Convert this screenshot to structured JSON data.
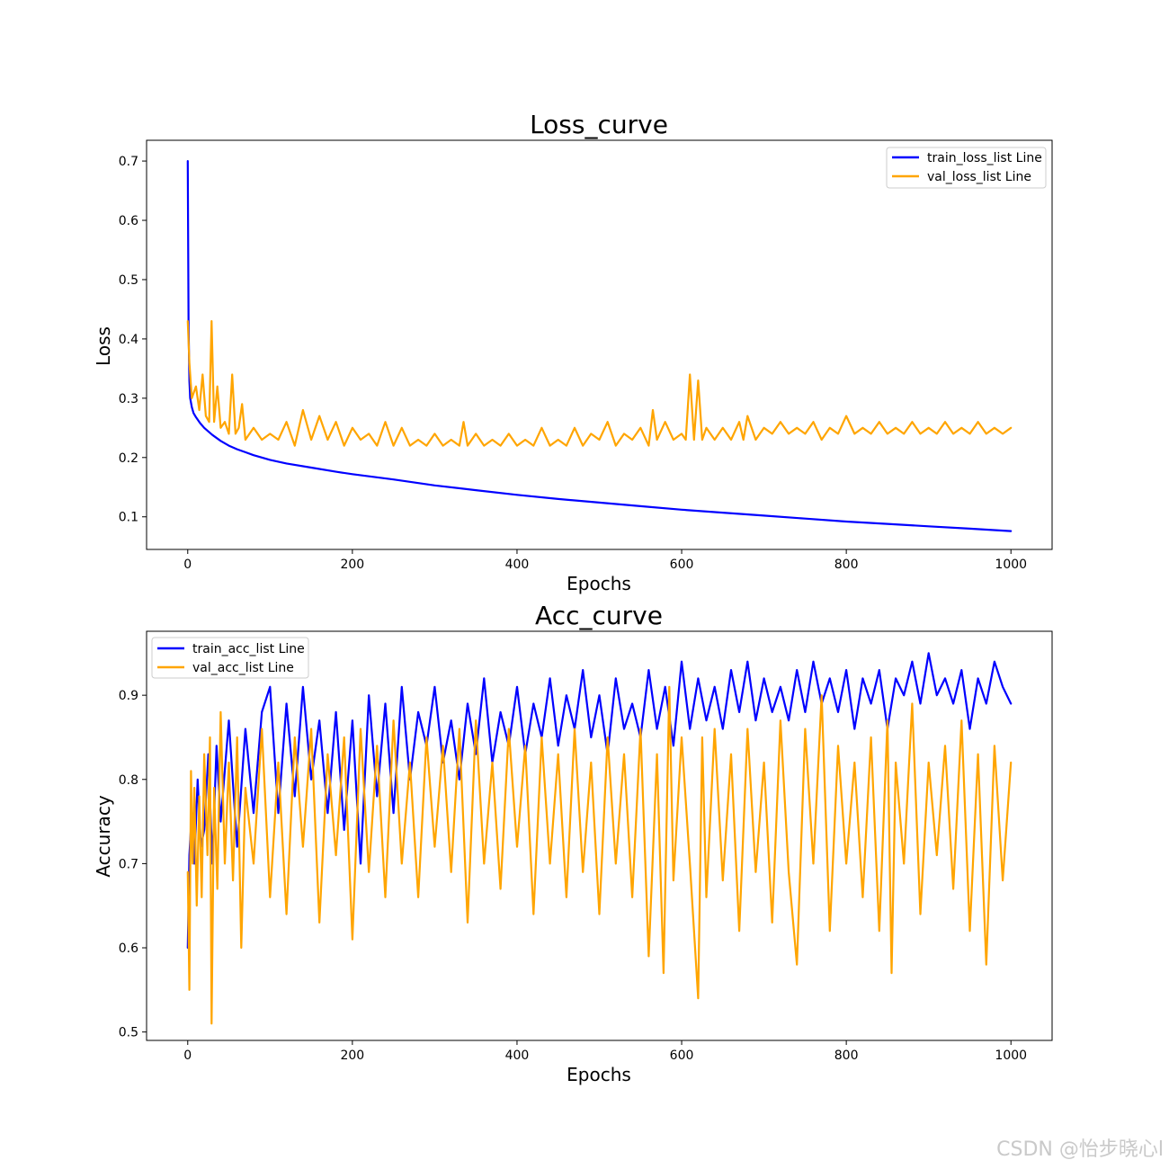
{
  "watermark": "CSDN @怡步晓心l",
  "chart_data": [
    {
      "type": "line",
      "title": "Loss_curve",
      "xlabel": "Epochs",
      "ylabel": "Loss",
      "xlim": [
        -50,
        1050
      ],
      "ylim": [
        0.045,
        0.735
      ],
      "xticks": [
        0,
        200,
        400,
        600,
        800,
        1000
      ],
      "yticks": [
        0.1,
        0.2,
        0.3,
        0.4,
        0.5,
        0.6,
        0.7
      ],
      "legend_position": "upper right",
      "grid": false,
      "series": [
        {
          "name": "train_loss_list Line",
          "color": "#0000ff",
          "x": [
            0,
            1,
            2,
            3,
            5,
            7,
            10,
            15,
            20,
            25,
            30,
            40,
            50,
            60,
            70,
            80,
            100,
            120,
            150,
            180,
            200,
            250,
            300,
            350,
            400,
            450,
            500,
            550,
            600,
            650,
            700,
            750,
            800,
            850,
            900,
            950,
            1000
          ],
          "y": [
            0.7,
            0.42,
            0.33,
            0.3,
            0.285,
            0.275,
            0.268,
            0.258,
            0.25,
            0.244,
            0.238,
            0.228,
            0.22,
            0.214,
            0.209,
            0.204,
            0.196,
            0.19,
            0.183,
            0.176,
            0.172,
            0.163,
            0.153,
            0.145,
            0.137,
            0.13,
            0.124,
            0.118,
            0.112,
            0.107,
            0.102,
            0.097,
            0.092,
            0.088,
            0.084,
            0.08,
            0.076
          ]
        },
        {
          "name": "val_loss_list Line",
          "color": "#ffa500",
          "x": [
            0,
            2,
            5,
            10,
            14,
            18,
            22,
            26,
            29,
            32,
            36,
            40,
            45,
            50,
            54,
            58,
            62,
            66,
            70,
            80,
            90,
            100,
            110,
            120,
            130,
            140,
            150,
            160,
            170,
            180,
            190,
            200,
            210,
            220,
            230,
            240,
            250,
            260,
            270,
            280,
            290,
            300,
            310,
            320,
            330,
            335,
            340,
            350,
            360,
            370,
            380,
            390,
            400,
            410,
            420,
            430,
            440,
            450,
            460,
            470,
            480,
            490,
            500,
            510,
            520,
            530,
            540,
            550,
            560,
            565,
            570,
            580,
            590,
            600,
            605,
            610,
            615,
            620,
            625,
            630,
            640,
            650,
            660,
            670,
            675,
            680,
            690,
            700,
            710,
            720,
            730,
            740,
            750,
            760,
            770,
            780,
            790,
            800,
            810,
            820,
            830,
            840,
            850,
            860,
            870,
            880,
            890,
            900,
            910,
            920,
            930,
            940,
            950,
            960,
            970,
            980,
            990,
            1000
          ],
          "y": [
            0.43,
            0.36,
            0.3,
            0.32,
            0.28,
            0.34,
            0.27,
            0.26,
            0.43,
            0.26,
            0.32,
            0.25,
            0.26,
            0.24,
            0.34,
            0.24,
            0.25,
            0.29,
            0.23,
            0.25,
            0.23,
            0.24,
            0.23,
            0.26,
            0.22,
            0.28,
            0.23,
            0.27,
            0.23,
            0.26,
            0.22,
            0.25,
            0.23,
            0.24,
            0.22,
            0.26,
            0.22,
            0.25,
            0.22,
            0.23,
            0.22,
            0.24,
            0.22,
            0.23,
            0.22,
            0.26,
            0.22,
            0.24,
            0.22,
            0.23,
            0.22,
            0.24,
            0.22,
            0.23,
            0.22,
            0.25,
            0.22,
            0.23,
            0.22,
            0.25,
            0.22,
            0.24,
            0.23,
            0.26,
            0.22,
            0.24,
            0.23,
            0.25,
            0.22,
            0.28,
            0.23,
            0.26,
            0.23,
            0.24,
            0.23,
            0.34,
            0.23,
            0.33,
            0.23,
            0.25,
            0.23,
            0.25,
            0.23,
            0.26,
            0.23,
            0.27,
            0.23,
            0.25,
            0.24,
            0.26,
            0.24,
            0.25,
            0.24,
            0.26,
            0.23,
            0.25,
            0.24,
            0.27,
            0.24,
            0.25,
            0.24,
            0.26,
            0.24,
            0.25,
            0.24,
            0.26,
            0.24,
            0.25,
            0.24,
            0.26,
            0.24,
            0.25,
            0.24,
            0.26,
            0.24,
            0.25,
            0.24,
            0.25
          ]
        }
      ]
    },
    {
      "type": "line",
      "title": "Acc_curve",
      "xlabel": "Epochs",
      "ylabel": "Accuracy",
      "xlim": [
        -50,
        1050
      ],
      "ylim": [
        0.49,
        0.976
      ],
      "xticks": [
        0,
        200,
        400,
        600,
        800,
        1000
      ],
      "yticks": [
        0.5,
        0.6,
        0.7,
        0.8,
        0.9
      ],
      "legend_position": "upper left",
      "grid": false,
      "series": [
        {
          "name": "train_acc_list Line",
          "color": "#0000ff",
          "x": [
            0,
            2,
            5,
            8,
            12,
            16,
            20,
            25,
            30,
            35,
            40,
            50,
            60,
            70,
            80,
            90,
            100,
            110,
            120,
            130,
            140,
            150,
            160,
            170,
            180,
            190,
            200,
            210,
            220,
            230,
            240,
            250,
            260,
            270,
            280,
            290,
            300,
            310,
            320,
            330,
            340,
            350,
            360,
            370,
            380,
            390,
            400,
            410,
            420,
            430,
            440,
            450,
            460,
            470,
            480,
            490,
            500,
            510,
            520,
            530,
            540,
            550,
            560,
            570,
            580,
            590,
            600,
            610,
            620,
            630,
            640,
            650,
            660,
            670,
            680,
            690,
            700,
            710,
            720,
            730,
            740,
            750,
            760,
            770,
            780,
            790,
            800,
            810,
            820,
            830,
            840,
            850,
            860,
            870,
            880,
            890,
            900,
            910,
            920,
            930,
            940,
            950,
            960,
            970,
            980,
            990,
            1000
          ],
          "y": [
            0.6,
            0.71,
            0.76,
            0.7,
            0.8,
            0.72,
            0.74,
            0.83,
            0.7,
            0.84,
            0.75,
            0.87,
            0.72,
            0.86,
            0.76,
            0.88,
            0.91,
            0.76,
            0.89,
            0.78,
            0.91,
            0.8,
            0.87,
            0.76,
            0.88,
            0.74,
            0.87,
            0.7,
            0.9,
            0.78,
            0.89,
            0.76,
            0.91,
            0.8,
            0.88,
            0.84,
            0.91,
            0.82,
            0.87,
            0.8,
            0.89,
            0.83,
            0.92,
            0.82,
            0.88,
            0.84,
            0.91,
            0.83,
            0.89,
            0.85,
            0.92,
            0.84,
            0.9,
            0.86,
            0.93,
            0.85,
            0.9,
            0.83,
            0.92,
            0.86,
            0.89,
            0.85,
            0.93,
            0.86,
            0.91,
            0.84,
            0.94,
            0.86,
            0.92,
            0.87,
            0.91,
            0.86,
            0.93,
            0.88,
            0.94,
            0.87,
            0.92,
            0.88,
            0.91,
            0.87,
            0.93,
            0.88,
            0.94,
            0.89,
            0.92,
            0.88,
            0.93,
            0.86,
            0.92,
            0.89,
            0.93,
            0.86,
            0.92,
            0.9,
            0.94,
            0.89,
            0.95,
            0.9,
            0.92,
            0.89,
            0.93,
            0.86,
            0.92,
            0.89,
            0.94,
            0.91,
            0.89
          ]
        },
        {
          "name": "val_acc_list Line",
          "color": "#ffa500",
          "x": [
            0,
            2,
            4,
            6,
            8,
            11,
            14,
            17,
            20,
            24,
            27,
            29,
            32,
            36,
            40,
            45,
            50,
            55,
            60,
            65,
            70,
            80,
            90,
            100,
            110,
            120,
            130,
            140,
            150,
            160,
            170,
            180,
            190,
            200,
            210,
            220,
            230,
            240,
            250,
            260,
            270,
            280,
            290,
            300,
            310,
            320,
            330,
            340,
            350,
            360,
            370,
            380,
            390,
            400,
            410,
            420,
            430,
            440,
            450,
            460,
            470,
            480,
            490,
            500,
            510,
            520,
            530,
            540,
            550,
            560,
            570,
            578,
            585,
            590,
            600,
            610,
            620,
            625,
            630,
            640,
            650,
            660,
            670,
            680,
            690,
            700,
            710,
            720,
            730,
            740,
            750,
            760,
            770,
            780,
            790,
            800,
            810,
            820,
            830,
            840,
            850,
            855,
            860,
            870,
            880,
            890,
            900,
            910,
            920,
            930,
            940,
            950,
            960,
            970,
            980,
            990,
            1000
          ],
          "y": [
            0.69,
            0.55,
            0.81,
            0.7,
            0.79,
            0.65,
            0.78,
            0.66,
            0.83,
            0.71,
            0.85,
            0.51,
            0.79,
            0.67,
            0.88,
            0.7,
            0.82,
            0.68,
            0.85,
            0.6,
            0.79,
            0.7,
            0.86,
            0.66,
            0.82,
            0.64,
            0.85,
            0.72,
            0.86,
            0.63,
            0.83,
            0.71,
            0.85,
            0.61,
            0.86,
            0.69,
            0.84,
            0.66,
            0.87,
            0.7,
            0.82,
            0.66,
            0.85,
            0.72,
            0.84,
            0.69,
            0.86,
            0.63,
            0.87,
            0.7,
            0.82,
            0.67,
            0.86,
            0.72,
            0.84,
            0.64,
            0.85,
            0.7,
            0.83,
            0.66,
            0.86,
            0.69,
            0.82,
            0.64,
            0.85,
            0.7,
            0.83,
            0.66,
            0.86,
            0.59,
            0.83,
            0.57,
            0.91,
            0.68,
            0.85,
            0.7,
            0.54,
            0.85,
            0.66,
            0.86,
            0.68,
            0.83,
            0.62,
            0.86,
            0.69,
            0.82,
            0.63,
            0.87,
            0.69,
            0.58,
            0.86,
            0.7,
            0.9,
            0.62,
            0.84,
            0.7,
            0.82,
            0.66,
            0.85,
            0.62,
            0.87,
            0.57,
            0.82,
            0.7,
            0.89,
            0.64,
            0.82,
            0.71,
            0.84,
            0.67,
            0.87,
            0.62,
            0.83,
            0.58,
            0.84,
            0.68,
            0.82
          ]
        }
      ]
    }
  ]
}
